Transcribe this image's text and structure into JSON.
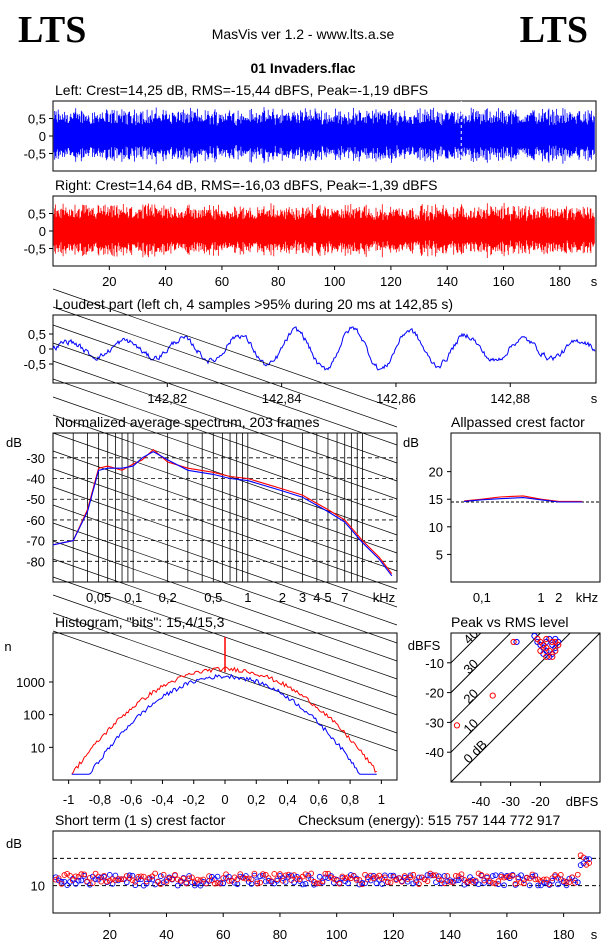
{
  "header": {
    "logo_left": "LTS",
    "logo_right": "LTS",
    "app_title": "MasVis ver 1.2 - www.lts.a.se",
    "file_title": "01 Invaders.flac"
  },
  "colors": {
    "left": "#0000ff",
    "right": "#ff0000",
    "grid": "#000000"
  },
  "chart_data": [
    {
      "id": "left_waveform",
      "type": "area",
      "title": "Left: Crest=14,25 dB, RMS=-15,44 dBFS, Peak=-1,19 dBFS",
      "yticks": [
        "0,5",
        "0",
        "-0,5"
      ],
      "ylim": [
        -1,
        1
      ],
      "xlim": [
        0,
        190
      ],
      "envelope": 0.85,
      "marker_x": 142.85
    },
    {
      "id": "right_waveform",
      "type": "area",
      "title": "Right: Crest=14,64 dB, RMS=-16,03 dBFS, Peak=-1,39 dBFS",
      "yticks": [
        "0,5",
        "0",
        "-0,5"
      ],
      "ylim": [
        -1,
        1
      ],
      "xlim": [
        0,
        190
      ],
      "xticks": [
        "20",
        "40",
        "60",
        "80",
        "100",
        "120",
        "140",
        "160",
        "180",
        "s"
      ],
      "envelope": 0.82
    },
    {
      "id": "loudest_part",
      "type": "line",
      "title": "Loudest part (left  ch, 4 samples >95% during 20 ms at 142,85 s)",
      "yticks": [
        "0,5",
        "0",
        "-0,5"
      ],
      "xticks": [
        "142,82",
        "142,84",
        "142,86",
        "142,88",
        "s"
      ],
      "xlim": [
        142.8,
        142.895
      ]
    },
    {
      "id": "spectrum",
      "type": "line",
      "title": "Normalized average spectrum, 203 frames",
      "ylabel": "dB",
      "yticks": [
        "-30",
        "-40",
        "-50",
        "-60",
        "-70",
        "-80"
      ],
      "xticks": [
        "0,05",
        "0,1",
        "0,2",
        "0,5",
        "1",
        "2",
        "3",
        "4",
        "5",
        "7",
        "kHz"
      ],
      "ylim": [
        -90,
        -18
      ],
      "series": [
        {
          "points": [
            [
              0.02,
              -72
            ],
            [
              0.03,
              -70
            ],
            [
              0.04,
              -55
            ],
            [
              0.05,
              -35
            ],
            [
              0.06,
              -34
            ],
            [
              0.08,
              -36
            ],
            [
              0.1,
              -33
            ],
            [
              0.12,
              -31
            ],
            [
              0.15,
              -26
            ],
            [
              0.2,
              -32
            ],
            [
              0.3,
              -35
            ],
            [
              0.5,
              -37
            ],
            [
              0.7,
              -39
            ],
            [
              1,
              -40
            ],
            [
              2,
              -45
            ],
            [
              3,
              -48
            ],
            [
              4,
              -52
            ],
            [
              5,
              -55
            ],
            [
              7,
              -60
            ],
            [
              10,
              -70
            ],
            [
              14,
              -78
            ],
            [
              18,
              -86
            ]
          ]
        },
        {
          "points": [
            [
              0.02,
              -72
            ],
            [
              0.03,
              -70
            ],
            [
              0.04,
              -56
            ],
            [
              0.05,
              -36
            ],
            [
              0.06,
              -35
            ],
            [
              0.08,
              -35
            ],
            [
              0.1,
              -34
            ],
            [
              0.12,
              -30
            ],
            [
              0.15,
              -27
            ],
            [
              0.2,
              -31
            ],
            [
              0.3,
              -36
            ],
            [
              0.5,
              -38
            ],
            [
              0.7,
              -40
            ],
            [
              1,
              -41
            ],
            [
              2,
              -46
            ],
            [
              3,
              -49
            ],
            [
              4,
              -53
            ],
            [
              5,
              -56
            ],
            [
              7,
              -61
            ],
            [
              10,
              -71
            ],
            [
              14,
              -79
            ],
            [
              18,
              -87
            ]
          ]
        }
      ]
    },
    {
      "id": "allpassed_crest",
      "type": "line",
      "title": "Allpassed crest factor",
      "ylabel": "dB",
      "yticks": [
        "20",
        "15",
        "10",
        "5"
      ],
      "xticks": [
        "0,1",
        "1",
        "2",
        "kHz"
      ],
      "ylim": [
        0,
        27
      ],
      "ref_level": 14.5,
      "series": [
        {
          "points": [
            [
              0.05,
              14.7
            ],
            [
              0.1,
              15.0
            ],
            [
              0.2,
              15.4
            ],
            [
              0.5,
              15.6
            ],
            [
              1,
              15.0
            ],
            [
              2,
              14.6
            ],
            [
              5,
              14.6
            ]
          ]
        },
        {
          "points": [
            [
              0.05,
              14.6
            ],
            [
              0.1,
              14.9
            ],
            [
              0.2,
              15.1
            ],
            [
              0.5,
              15.3
            ],
            [
              1,
              14.9
            ],
            [
              2,
              14.5
            ],
            [
              5,
              14.5
            ]
          ]
        }
      ]
    },
    {
      "id": "histogram",
      "type": "line",
      "title": "Histogram, \"bits\": 15,4/15,3",
      "ylabel": "n",
      "yticks": [
        "1000",
        "100",
        "10"
      ],
      "xticks": [
        "-1",
        "-0,8",
        "-0,6",
        "-0,4",
        "-0,2",
        "0",
        "0,2",
        "0,4",
        "0,6",
        "0,8",
        "1"
      ],
      "xlim": [
        -1.1,
        1.1
      ]
    },
    {
      "id": "peak_vs_rms",
      "type": "scatter",
      "title": "Peak vs RMS level",
      "ylabel": "dBFS",
      "yticks": [
        "-10",
        "-20",
        "-30",
        "-40"
      ],
      "xticks": [
        "-40",
        "-30",
        "-20",
        "dBFS"
      ],
      "diagonal_labels": [
        "40",
        "30",
        "20",
        "10",
        "0 dB"
      ],
      "left_points": [
        [
          -28,
          -3
        ],
        [
          -22,
          -1
        ],
        [
          -21,
          -3
        ],
        [
          -20,
          -4
        ],
        [
          -19,
          -5
        ],
        [
          -18,
          -6
        ],
        [
          -17,
          -2
        ],
        [
          -16,
          -4
        ],
        [
          -16,
          -7
        ],
        [
          -17,
          -8
        ],
        [
          -15,
          -5
        ],
        [
          -14,
          -3
        ],
        [
          -15,
          -2
        ],
        [
          -18,
          -3
        ],
        [
          -19,
          -7
        ]
      ],
      "right_points": [
        [
          -29,
          -3
        ],
        [
          -21,
          -2
        ],
        [
          -20,
          -3
        ],
        [
          -19,
          -4
        ],
        [
          -18,
          -5
        ],
        [
          -17,
          -6
        ],
        [
          -16,
          -3
        ],
        [
          -15,
          -6
        ],
        [
          -16,
          -8
        ],
        [
          -18,
          -8
        ],
        [
          -14,
          -4
        ],
        [
          -15,
          -3
        ],
        [
          -18,
          -2
        ],
        [
          -20,
          -6
        ],
        [
          -48,
          -31
        ],
        [
          -36,
          -21
        ]
      ]
    },
    {
      "id": "short_term_crest",
      "type": "scatter",
      "title": "Short term (1 s) crest factor",
      "checksum": "Checksum (energy):   515 757 144 772 917",
      "ylabel": "dB",
      "yticks": [
        "10"
      ],
      "xticks": [
        "20",
        "40",
        "60",
        "80",
        "100",
        "120",
        "140",
        "160",
        "180",
        "s"
      ],
      "xlim": [
        0,
        190
      ],
      "ylim": [
        0,
        30
      ]
    }
  ]
}
